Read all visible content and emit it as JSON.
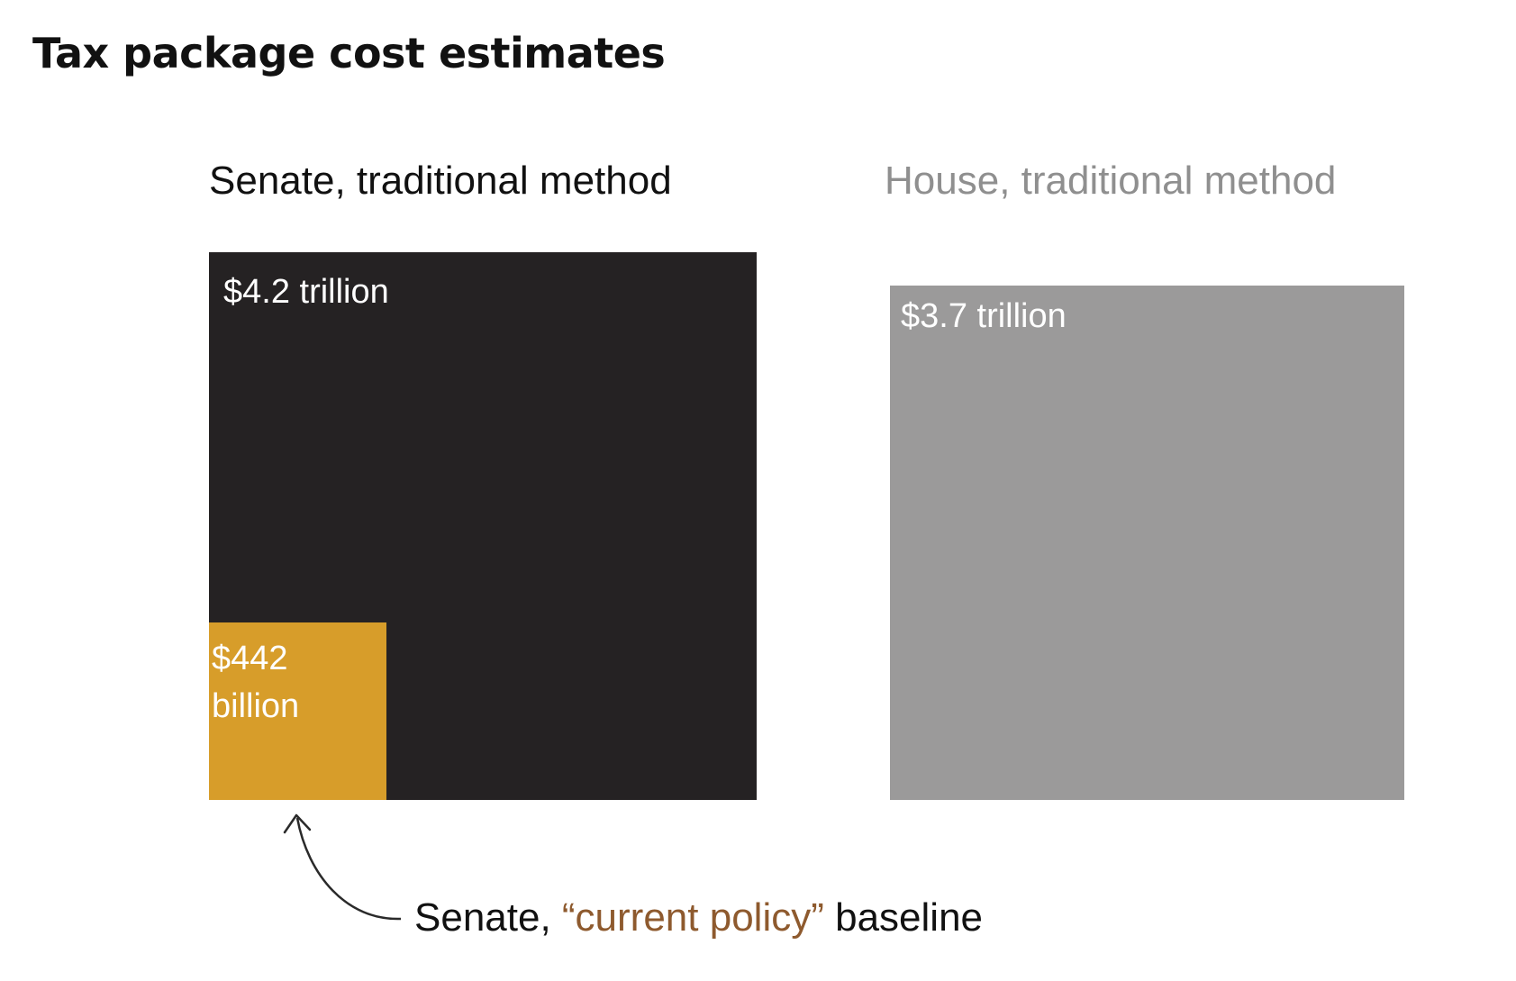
{
  "title": "Tax package cost estimates",
  "colors": {
    "senate": "#252223",
    "current_policy": "#d79d2a",
    "house": "#9b9a9a",
    "house_heading": "#8f8f8f",
    "annotation_highlight": "#8e5a2e"
  },
  "annotation": {
    "prefix": "Senate, ",
    "highlight": "“current policy”",
    "suffix": " baseline"
  },
  "chart_data": {
    "type": "area",
    "unit": "billion dollars",
    "series": [
      {
        "name": "Senate, traditional method",
        "value": 4200,
        "label": "$4.2 trillion"
      },
      {
        "name": "House, traditional method",
        "value": 3700,
        "label": "$3.7 trillion"
      },
      {
        "name": "Senate, “current policy” baseline",
        "value": 442,
        "label_line1": "$442",
        "label_line2": "billion"
      }
    ]
  }
}
